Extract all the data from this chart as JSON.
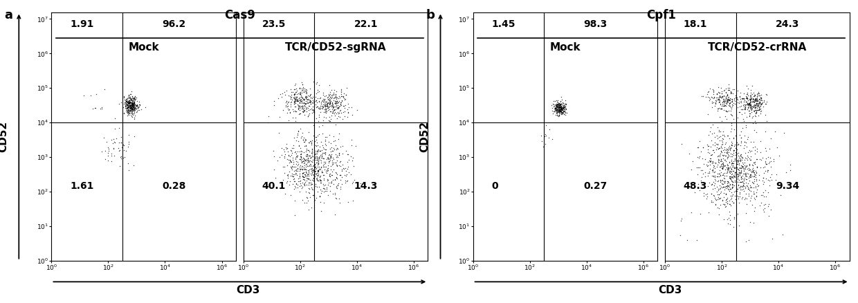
{
  "panel_a_title": "Cas9",
  "panel_b_title": "Cpf1",
  "panel_a_label": "a",
  "panel_b_label": "b",
  "col_labels_a": [
    "Mock",
    "TCR/CD52-sgRNA"
  ],
  "col_labels_b": [
    "Mock",
    "TCR/CD52-crRNA"
  ],
  "xlabel": "CD3",
  "ylabel": "CD52",
  "quadrant_vals": [
    [
      "1.91",
      "96.2",
      "1.61",
      "0.28"
    ],
    [
      "23.5",
      "22.1",
      "40.1",
      "14.3"
    ],
    [
      "1.45",
      "98.3",
      "0",
      "0.27"
    ],
    [
      "18.1",
      "24.3",
      "48.3",
      "9.34"
    ]
  ],
  "xmin": 0,
  "xmax": 6.5,
  "ymin": 0,
  "ymax": 7.2,
  "gate_x": 2.5,
  "gate_y": 4.0,
  "bg_color": "#ffffff",
  "dot_color": "#000000",
  "text_color": "#000000",
  "quadrant_fontsize": 10,
  "label_fontsize": 11,
  "title_fontsize": 12,
  "panel_label_fontsize": 13,
  "tick_fontsize": 6.5
}
